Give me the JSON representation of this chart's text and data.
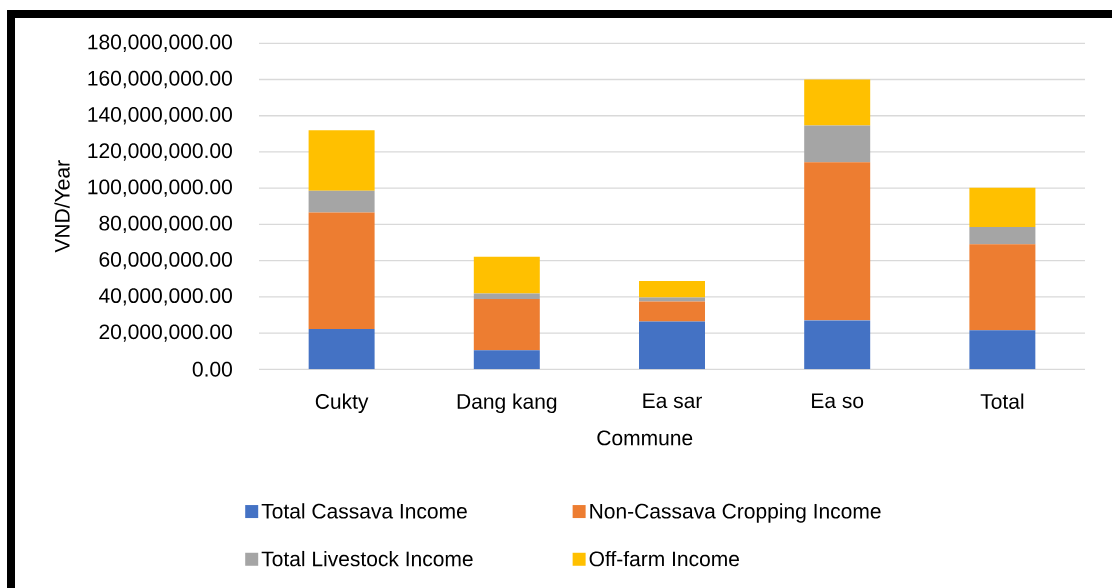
{
  "chart_data": {
    "type": "bar",
    "stacked": true,
    "xlabel": "Commune",
    "ylabel": "VND/Year",
    "categories": [
      "Cukty",
      "Dang kang",
      "Ea sar",
      "Ea so",
      "Total"
    ],
    "series": [
      {
        "name": "Total Cassava Income",
        "color": "#4472c4",
        "values": [
          22300000,
          10500000,
          26400000,
          27100000,
          21600000
        ]
      },
      {
        "name": "Non-Cassava Cropping Income",
        "color": "#ed7d31",
        "values": [
          64300000,
          28300000,
          11000000,
          87200000,
          47500000
        ]
      },
      {
        "name": "Total Livestock Income",
        "color": "#a5a5a5",
        "values": [
          12000000,
          3100000,
          2200000,
          20300000,
          9400000
        ]
      },
      {
        "name": "Off-farm Income",
        "color": "#ffc000",
        "values": [
          33400000,
          20300000,
          9200000,
          25400000,
          21800000
        ]
      }
    ],
    "ylim": [
      0,
      180000000
    ],
    "yticks": [
      {
        "value": 0,
        "label": "0.00"
      },
      {
        "value": 20000000,
        "label": "20,000,000.00"
      },
      {
        "value": 40000000,
        "label": "40,000,000.00"
      },
      {
        "value": 60000000,
        "label": "60,000,000.00"
      },
      {
        "value": 80000000,
        "label": "80,000,000.00"
      },
      {
        "value": 100000000,
        "label": "100,000,000.00"
      },
      {
        "value": 120000000,
        "label": "120,000,000.00"
      },
      {
        "value": 140000000,
        "label": "140,000,000.00"
      },
      {
        "value": 160000000,
        "label": "160,000,000.00"
      },
      {
        "value": 180000000,
        "label": "180,000,000.00"
      }
    ],
    "grid": "y",
    "legend": "bottom"
  }
}
